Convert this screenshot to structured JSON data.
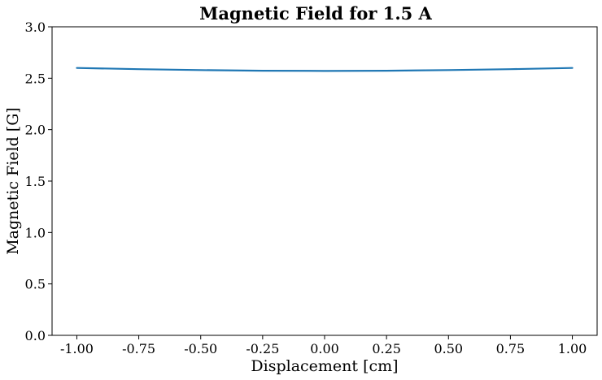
{
  "chart_data": {
    "type": "line",
    "title": "Magnetic Field for 1.5 A",
    "xlabel": "Displacement [cm]",
    "ylabel": "Magnetic Field [G]",
    "xlim": [
      -1.1,
      1.1
    ],
    "ylim": [
      0.0,
      3.0
    ],
    "xticks": [
      -1.0,
      -0.75,
      -0.5,
      -0.25,
      0.0,
      0.25,
      0.5,
      0.75,
      1.0
    ],
    "xtick_labels": [
      "-1.00",
      "-0.75",
      "-0.50",
      "-0.25",
      "0.00",
      "0.25",
      "0.50",
      "0.75",
      "1.00"
    ],
    "yticks": [
      0.0,
      0.5,
      1.0,
      1.5,
      2.0,
      2.5,
      3.0
    ],
    "ytick_labels": [
      "0.0",
      "0.5",
      "1.0",
      "1.5",
      "2.0",
      "2.5",
      "3.0"
    ],
    "grid": false,
    "series": [
      {
        "color": "#1f77b4",
        "x": [
          -1.0,
          -0.75,
          -0.5,
          -0.25,
          0.0,
          0.25,
          0.5,
          0.75,
          1.0
        ],
        "y": [
          2.6,
          2.588,
          2.579,
          2.573,
          2.571,
          2.573,
          2.579,
          2.588,
          2.6
        ]
      }
    ]
  }
}
